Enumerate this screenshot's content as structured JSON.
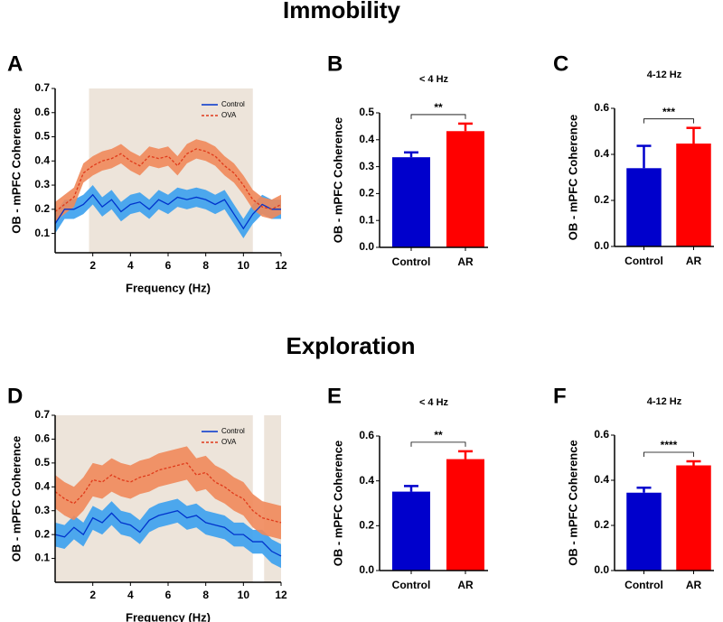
{
  "sections": [
    "Immobility",
    "Exploration"
  ],
  "chart_data": [
    {
      "type": "line",
      "panel": "A",
      "xlabel": "Frequency (Hz)",
      "ylabel": "OB - mPFC Coherence",
      "x": [
        0,
        0.5,
        1,
        1.5,
        2,
        2.5,
        3,
        3.5,
        4,
        4.5,
        5,
        5.5,
        6,
        6.5,
        7,
        7.5,
        8,
        8.5,
        9,
        9.5,
        10,
        10.5,
        11,
        11.5,
        12
      ],
      "xlim": [
        0,
        12
      ],
      "xticks": [
        2,
        4,
        6,
        8,
        10,
        12
      ],
      "ylim": [
        0.02,
        0.7
      ],
      "yticks": [
        0.1,
        0.2,
        0.3,
        0.4,
        0.5,
        0.6,
        0.7
      ],
      "shaded_ranges": [
        [
          1.8,
          10.5
        ]
      ],
      "shade_color": "#ede4da",
      "series": [
        {
          "name": "Control",
          "color": "#0033cc",
          "band_color": "#3aa0ee",
          "dash": false,
          "values": [
            0.14,
            0.2,
            0.2,
            0.22,
            0.26,
            0.21,
            0.24,
            0.19,
            0.22,
            0.23,
            0.2,
            0.24,
            0.22,
            0.25,
            0.24,
            0.25,
            0.24,
            0.22,
            0.24,
            0.18,
            0.12,
            0.18,
            0.22,
            0.2,
            0.2
          ],
          "error": [
            0.04,
            0.04,
            0.04,
            0.04,
            0.04,
            0.04,
            0.04,
            0.04,
            0.04,
            0.04,
            0.04,
            0.04,
            0.04,
            0.04,
            0.04,
            0.04,
            0.04,
            0.04,
            0.04,
            0.04,
            0.04,
            0.04,
            0.04,
            0.04,
            0.04
          ]
        },
        {
          "name": "OVA",
          "color": "#e03a1a",
          "band_color": "#f0885a",
          "dash": true,
          "values": [
            0.19,
            0.22,
            0.25,
            0.35,
            0.38,
            0.4,
            0.41,
            0.43,
            0.4,
            0.38,
            0.42,
            0.41,
            0.42,
            0.38,
            0.43,
            0.45,
            0.44,
            0.42,
            0.38,
            0.35,
            0.3,
            0.24,
            0.21,
            0.2,
            0.22
          ],
          "error": [
            0.04,
            0.04,
            0.04,
            0.04,
            0.04,
            0.04,
            0.04,
            0.04,
            0.04,
            0.04,
            0.04,
            0.04,
            0.04,
            0.04,
            0.04,
            0.04,
            0.04,
            0.04,
            0.04,
            0.04,
            0.04,
            0.04,
            0.04,
            0.04,
            0.04
          ]
        }
      ]
    },
    {
      "type": "bar",
      "panel": "B",
      "subtitle": "< 4 Hz",
      "ylabel": "OB - mPFC Coherence",
      "categories": [
        "Control",
        "AR"
      ],
      "values": [
        0.335,
        0.432
      ],
      "error": [
        0.018,
        0.028
      ],
      "colors": [
        "#0000cc",
        "#ff0000"
      ],
      "ylim": [
        0,
        0.5
      ],
      "yticks": [
        {
          "value": 0,
          "label": "0.0"
        },
        0.1,
        0.2,
        0.3,
        0.4,
        0.5
      ],
      "significance": "**"
    },
    {
      "type": "bar",
      "panel": "C",
      "subtitle": "4-12 Hz",
      "ylabel": "OB - mPFC Coherence",
      "categories": [
        "Control",
        "AR"
      ],
      "values": [
        0.34,
        0.447
      ],
      "error": [
        0.097,
        0.068
      ],
      "colors": [
        "#0000cc",
        "#ff0000"
      ],
      "ylim": [
        0,
        0.6
      ],
      "yticks": [
        {
          "value": 0,
          "label": "0.0"
        },
        0.2,
        0.4,
        0.6
      ],
      "significance": "***"
    },
    {
      "type": "line",
      "panel": "D",
      "xlabel": "Frequency (Hz)",
      "ylabel": "OB - mPFC Coherence",
      "x": [
        0,
        0.5,
        1,
        1.5,
        2,
        2.5,
        3,
        3.5,
        4,
        4.5,
        5,
        5.5,
        6,
        6.5,
        7,
        7.5,
        8,
        8.5,
        9,
        9.5,
        10,
        10.5,
        11,
        11.5,
        12
      ],
      "xlim": [
        0,
        12
      ],
      "xticks": [
        2,
        4,
        6,
        8,
        10,
        12
      ],
      "ylim": [
        0,
        0.7
      ],
      "yticks": [
        0.1,
        0.2,
        0.3,
        0.4,
        0.5,
        0.6,
        0.7
      ],
      "shaded_ranges": [
        [
          0,
          10.5
        ],
        [
          11.1,
          12
        ]
      ],
      "shade_color": "#ede4da",
      "series": [
        {
          "name": "Control",
          "color": "#0033cc",
          "band_color": "#3aa0ee",
          "dash": false,
          "values": [
            0.2,
            0.19,
            0.23,
            0.2,
            0.27,
            0.25,
            0.29,
            0.25,
            0.24,
            0.21,
            0.26,
            0.28,
            0.29,
            0.3,
            0.27,
            0.28,
            0.25,
            0.24,
            0.23,
            0.2,
            0.2,
            0.17,
            0.17,
            0.13,
            0.11
          ],
          "error": [
            0.05,
            0.05,
            0.05,
            0.05,
            0.05,
            0.05,
            0.05,
            0.05,
            0.05,
            0.05,
            0.05,
            0.05,
            0.05,
            0.05,
            0.05,
            0.05,
            0.05,
            0.05,
            0.05,
            0.05,
            0.05,
            0.05,
            0.05,
            0.05,
            0.05
          ]
        },
        {
          "name": "OVA",
          "color": "#e03a1a",
          "band_color": "#f0885a",
          "dash": true,
          "values": [
            0.38,
            0.35,
            0.33,
            0.37,
            0.43,
            0.42,
            0.45,
            0.43,
            0.42,
            0.44,
            0.45,
            0.47,
            0.48,
            0.49,
            0.5,
            0.45,
            0.46,
            0.42,
            0.4,
            0.37,
            0.35,
            0.3,
            0.27,
            0.26,
            0.25
          ],
          "error": [
            0.07,
            0.07,
            0.07,
            0.07,
            0.07,
            0.07,
            0.07,
            0.07,
            0.07,
            0.07,
            0.07,
            0.07,
            0.07,
            0.07,
            0.07,
            0.07,
            0.07,
            0.07,
            0.07,
            0.07,
            0.07,
            0.07,
            0.07,
            0.07,
            0.07
          ]
        }
      ]
    },
    {
      "type": "bar",
      "panel": "E",
      "subtitle": "< 4 Hz",
      "ylabel": "OB - mPFC Coherence",
      "categories": [
        "Control",
        "AR"
      ],
      "values": [
        0.352,
        0.497
      ],
      "error": [
        0.025,
        0.035
      ],
      "colors": [
        "#0000cc",
        "#ff0000"
      ],
      "ylim": [
        0,
        0.6
      ],
      "yticks": [
        {
          "value": 0,
          "label": "0.0"
        },
        0.2,
        0.4,
        0.6
      ],
      "significance": "**"
    },
    {
      "type": "bar",
      "panel": "F",
      "subtitle": "4-12 Hz",
      "ylabel": "OB - mPFC Coherence",
      "categories": [
        "Control",
        "AR"
      ],
      "values": [
        0.345,
        0.466
      ],
      "error": [
        0.022,
        0.018
      ],
      "colors": [
        "#0000cc",
        "#ff0000"
      ],
      "ylim": [
        0,
        0.6
      ],
      "yticks": [
        {
          "value": 0,
          "label": "0.0"
        },
        0.2,
        0.4,
        0.6
      ],
      "significance": "****"
    }
  ]
}
